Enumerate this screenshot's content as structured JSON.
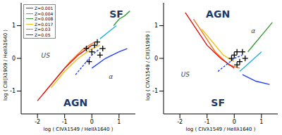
{
  "chart_data": [
    {
      "type": "line",
      "x_label": "log ( CIVλ1549 / HeIIλ1640 )",
      "y_label": "log ( CIII]λ1909 / HeIIλ1640 )",
      "xlim": [
        -2.6,
        1.6
      ],
      "ylim": [
        -1.7,
        1.7
      ],
      "xticks": [
        -2,
        -1,
        0,
        1
      ],
      "yticks": [
        -1,
        0,
        1
      ],
      "legend": "upper left",
      "annotations": [
        {
          "text": "SF",
          "x": 0.9,
          "y": 1.35
        },
        {
          "text": "AGN",
          "x": -0.6,
          "y": -1.35
        },
        {
          "text": "US",
          "x": -1.7,
          "y": 0.1
        },
        {
          "text": "α",
          "x": 0.7,
          "y": -0.55
        }
      ],
      "series": [
        {
          "name": "Z=0.001",
          "color": "#1f3fff",
          "marker": "none",
          "line_style": "solid",
          "x": [
            0,
            0.5,
            1.0,
            1.3
          ],
          "values": [
            -0.3,
            0.0,
            0.2,
            0.3
          ]
        },
        {
          "name": "Z=0.004",
          "color": "#1fb0e0",
          "marker": "none",
          "line_style": "solid",
          "x": [
            0.3,
            0.6,
            0.9
          ],
          "values": [
            0.6,
            0.8,
            1.0
          ]
        },
        {
          "name": "Z=0.008",
          "color": "#3a9a3a",
          "marker": "none",
          "line_style": "solid",
          "x": [
            0.8,
            1.0,
            1.2,
            1.4
          ],
          "values": [
            1.0,
            1.2,
            1.3,
            1.45
          ]
        },
        {
          "name": "Z=0.017",
          "color": "#f0c020",
          "marker": "none",
          "line_style": "solid",
          "x": [
            -1.5,
            -1.0,
            -0.5,
            0,
            0.3
          ],
          "values": [
            -0.9,
            -0.4,
            0.0,
            0.3,
            0.4
          ]
        },
        {
          "name": "Z=0.03",
          "color": "#f07820",
          "marker": "none",
          "line_style": "solid",
          "x": [
            -1.8,
            -1.3,
            -0.8,
            -0.3,
            0.1
          ],
          "values": [
            -1.1,
            -0.6,
            -0.1,
            0.3,
            0.5
          ]
        },
        {
          "name": "Z=0.05",
          "color": "#e01010",
          "marker": "none",
          "line_style": "solid",
          "x": [
            -2.0,
            -1.5,
            -1.0,
            -0.5,
            0
          ],
          "values": [
            -1.3,
            -0.8,
            -0.3,
            0.1,
            0.4
          ]
        },
        {
          "color": "#1f3fff",
          "marker": "none",
          "line_style": "dashed",
          "x": [
            -0.6,
            -0.3,
            0,
            0.3
          ],
          "values": [
            -0.5,
            -0.2,
            0.1,
            0.3
          ]
        },
        {
          "color": "#000000",
          "marker": "cross",
          "line_style": "none",
          "x": [
            -0.2,
            0,
            0.1,
            0.3,
            0.2,
            -0.1,
            0.4
          ],
          "values": [
            0.3,
            0.2,
            0.4,
            0.1,
            0.5,
            -0.1,
            0.3
          ]
        }
      ]
    },
    {
      "type": "line",
      "x_label": "log ( CIVλ1549 / HeIIλ1640 )",
      "y_label": "log ( CIVλ1549 / CIII]λ1909 )",
      "xlim": [
        -2.6,
        1.6
      ],
      "ylim": [
        -1.7,
        1.7
      ],
      "xticks": [
        -2,
        -1,
        0,
        1
      ],
      "yticks": [
        -1,
        0,
        1
      ],
      "annotations": [
        {
          "text": "AGN",
          "x": -0.6,
          "y": 1.35
        },
        {
          "text": "SF",
          "x": -0.6,
          "y": -1.35
        },
        {
          "text": "US",
          "x": -1.8,
          "y": -0.5
        },
        {
          "text": "α",
          "x": 0.7,
          "y": 0.85
        }
      ],
      "series": [
        {
          "color": "#1f3fff",
          "marker": "none",
          "line_style": "solid",
          "x": [
            0.3,
            0.8,
            1.3
          ],
          "values": [
            -0.5,
            -0.7,
            -0.8
          ]
        },
        {
          "color": "#1fb0e0",
          "marker": "none",
          "line_style": "solid",
          "x": [
            0.2,
            0.6,
            1.0
          ],
          "values": [
            -0.4,
            -0.1,
            0.2
          ]
        },
        {
          "color": "#3a9a3a",
          "marker": "none",
          "line_style": "solid",
          "x": [
            0.5,
            0.8,
            1.1,
            1.4
          ],
          "values": [
            0.2,
            0.5,
            0.8,
            1.1
          ]
        },
        {
          "color": "#f0c020",
          "marker": "none",
          "line_style": "solid",
          "x": [
            -1.2,
            -0.8,
            -0.4,
            0
          ],
          "values": [
            0.9,
            0.5,
            0.1,
            -0.1
          ]
        },
        {
          "color": "#f07820",
          "marker": "none",
          "line_style": "solid",
          "x": [
            -1.5,
            -1.1,
            -0.7,
            -0.2,
            0.2
          ],
          "values": [
            1.2,
            0.7,
            0.2,
            -0.2,
            -0.3
          ]
        },
        {
          "color": "#e01010",
          "marker": "none",
          "line_style": "solid",
          "x": [
            -1.8,
            -1.4,
            -1.0,
            -0.5,
            0
          ],
          "values": [
            1.4,
            0.9,
            0.4,
            0.0,
            -0.3
          ]
        },
        {
          "color": "#1f3fff",
          "marker": "none",
          "line_style": "dashed",
          "x": [
            -0.6,
            -0.3,
            0,
            0.3
          ],
          "values": [
            -0.4,
            -0.2,
            0,
            0.1
          ]
        },
        {
          "color": "#000000",
          "marker": "cross",
          "line_style": "none",
          "x": [
            0,
            0.1,
            -0.1,
            0.2,
            0.3,
            0.1,
            0.4
          ],
          "values": [
            0.1,
            0.2,
            0.0,
            -0.1,
            0.2,
            -0.2,
            0.0
          ]
        }
      ]
    }
  ]
}
